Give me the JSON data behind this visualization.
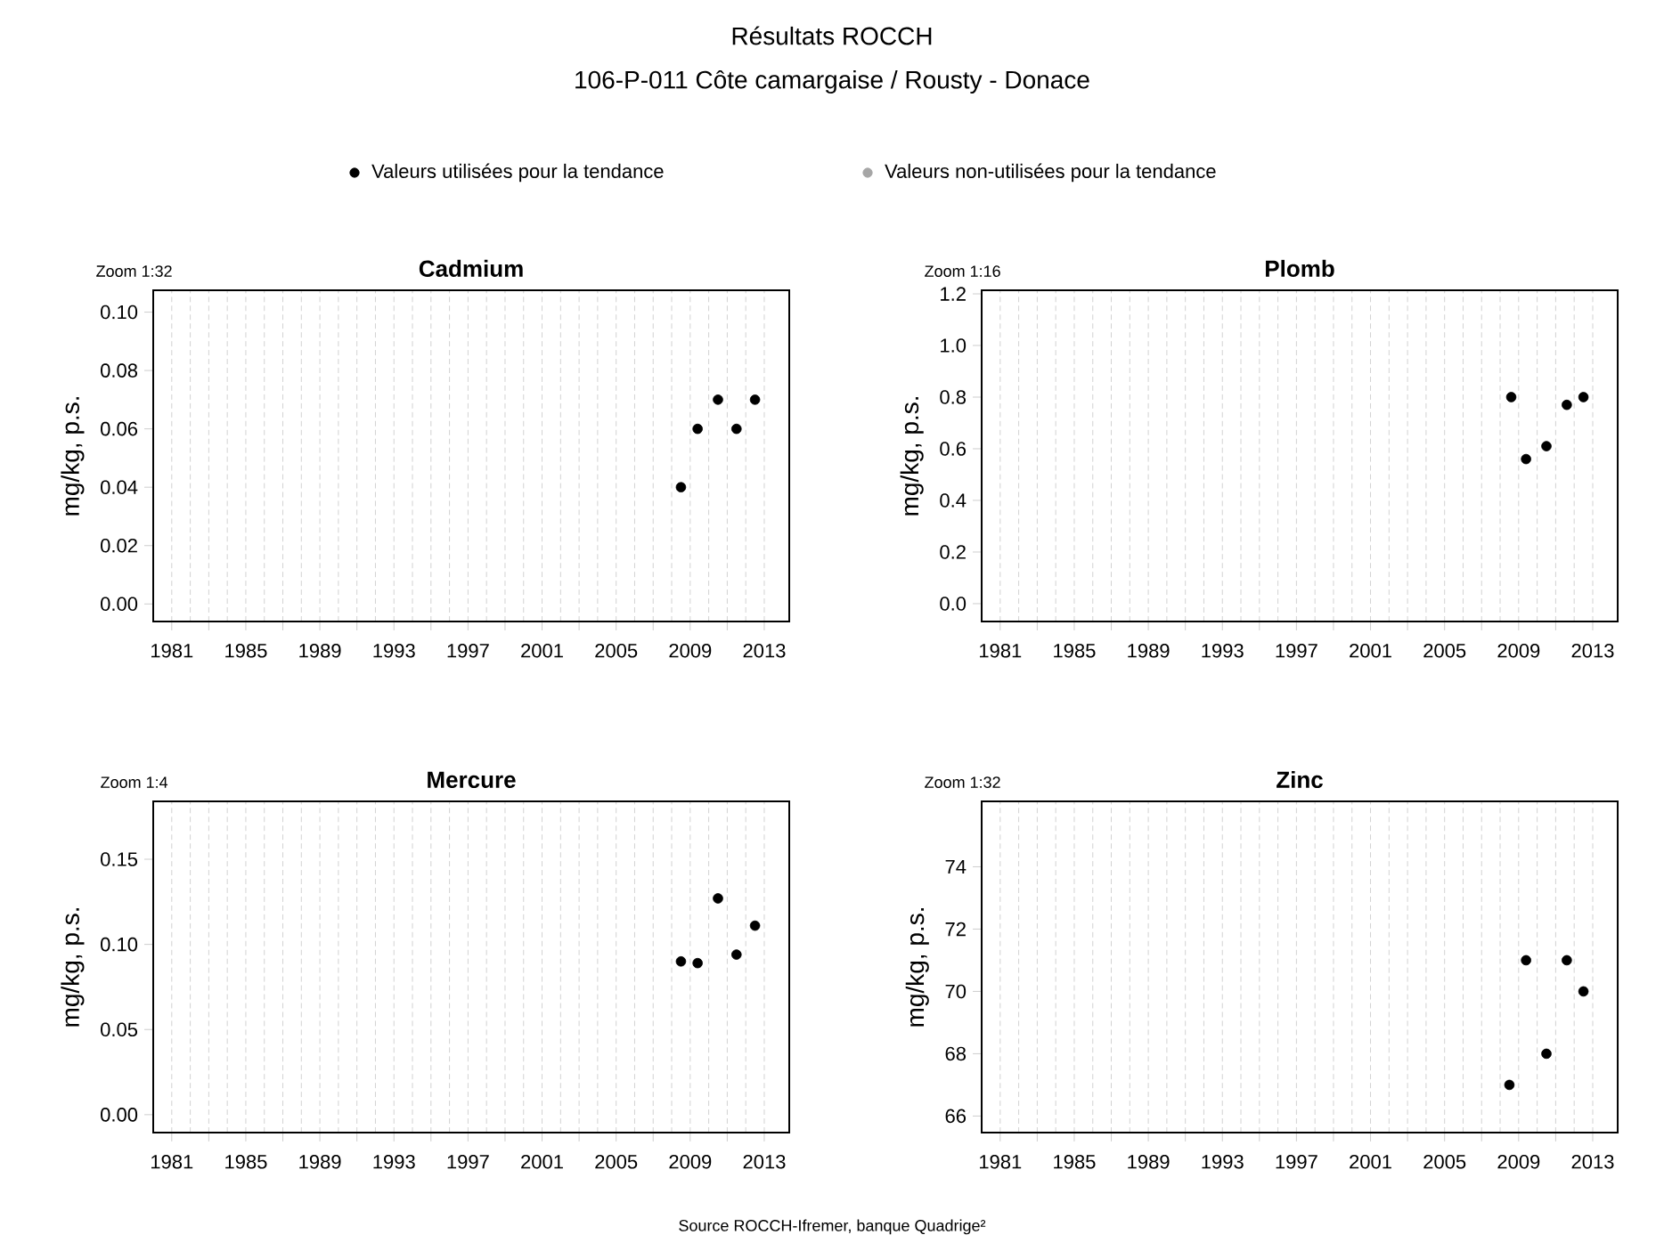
{
  "chart_data": [
    {
      "type": "scatter",
      "title": "Cadmium",
      "subtitle": "Zoom 1:32",
      "ylabel": "mg/kg, p.s.",
      "annotations": [
        "Résultats ROCCH",
        "106-P-011 Côte camargaise / Rousty - Donace"
      ],
      "legend": "top",
      "marker": "circle",
      "grid": "x",
      "xlim": [
        1980,
        2014.35
      ],
      "xticks": [
        1981,
        {
          "value": 1983,
          "label": null
        },
        1985,
        {
          "value": 1987,
          "label": null
        },
        1989,
        {
          "value": 1991,
          "label": null
        },
        1993,
        {
          "value": 1995,
          "label": null
        },
        1997,
        {
          "value": 1999,
          "label": null
        },
        2001,
        {
          "value": 2003,
          "label": null
        },
        2005,
        {
          "value": 2007,
          "label": null
        },
        2009,
        {
          "value": 2011,
          "label": null
        },
        2013
      ],
      "ylim": [
        -0.006,
        0.1075
      ],
      "yticks": [
        {
          "value": 0,
          "label": "0.00"
        },
        {
          "value": 0.02,
          "label": "0.02"
        },
        {
          "value": 0.04,
          "label": "0.04"
        },
        {
          "value": 0.06,
          "label": "0.06"
        },
        {
          "value": 0.08,
          "label": "0.08"
        },
        {
          "value": 0.1,
          "label": "0.10"
        }
      ],
      "x": [
        2008.5,
        2009.4,
        2010.5,
        2011.5,
        2012.5
      ],
      "series": [
        {
          "name": "Valeurs utilisées pour la tendance",
          "color": "#000000",
          "values": [
            0.04,
            0.06,
            0.07,
            0.06,
            0.07
          ]
        },
        {
          "name": "Valeurs non-utilisées pour la tendance",
          "color": "#a6a6a6",
          "values": [
            null,
            null,
            null,
            null,
            null
          ]
        }
      ]
    },
    {
      "type": "scatter",
      "title": "Plomb",
      "subtitle": "Zoom 1:16",
      "ylabel": "mg/kg, p.s.",
      "marker": "circle",
      "grid": "x",
      "xlim": [
        1980,
        2014.35
      ],
      "xticks": [
        1981,
        {
          "value": 1983,
          "label": null
        },
        1985,
        {
          "value": 1987,
          "label": null
        },
        1989,
        {
          "value": 1991,
          "label": null
        },
        1993,
        {
          "value": 1995,
          "label": null
        },
        1997,
        {
          "value": 1999,
          "label": null
        },
        2001,
        {
          "value": 2003,
          "label": null
        },
        2005,
        {
          "value": 2007,
          "label": null
        },
        2009,
        {
          "value": 2011,
          "label": null
        },
        2013
      ],
      "ylim": [
        -0.069,
        1.214
      ],
      "yticks": [
        {
          "value": 0,
          "label": "0.0"
        },
        0.2,
        0.4,
        0.6,
        0.8,
        {
          "value": 1,
          "label": "1.0"
        },
        1.2
      ],
      "x": [
        2008.6,
        2009.4,
        2010.5,
        2011.6,
        2012.5
      ],
      "series": [
        {
          "color": "#000000",
          "values": [
            0.8,
            0.56,
            0.61,
            0.77,
            0.8
          ]
        }
      ]
    },
    {
      "type": "scatter",
      "title": "Mercure",
      "subtitle": "Zoom 1:4",
      "ylabel": "mg/kg, p.s.",
      "marker": "circle",
      "grid": "x",
      "xlim": [
        1980,
        2014.35
      ],
      "xticks": [
        1981,
        {
          "value": 1983,
          "label": null
        },
        1985,
        {
          "value": 1987,
          "label": null
        },
        1989,
        {
          "value": 1991,
          "label": null
        },
        1993,
        {
          "value": 1995,
          "label": null
        },
        1997,
        {
          "value": 1999,
          "label": null
        },
        2001,
        {
          "value": 2003,
          "label": null
        },
        2005,
        {
          "value": 2007,
          "label": null
        },
        2009,
        {
          "value": 2011,
          "label": null
        },
        2013
      ],
      "ylim": [
        -0.0105,
        0.184
      ],
      "yticks": [
        {
          "value": 0,
          "label": "0.00"
        },
        {
          "value": 0.05,
          "label": "0.05"
        },
        {
          "value": 0.1,
          "label": "0.10"
        },
        0.15
      ],
      "x": [
        2008.5,
        2009.4,
        2010.5,
        2011.5,
        2012.5
      ],
      "series": [
        {
          "color": "#000000",
          "values": [
            0.09,
            0.089,
            0.127,
            0.094,
            0.111
          ]
        }
      ]
    },
    {
      "type": "scatter",
      "title": "Zinc",
      "subtitle": "Zoom 1:32",
      "ylabel": "mg/kg, p.s.",
      "annotations": [
        "Source ROCCH-Ifremer, banque Quadrige²"
      ],
      "marker": "circle",
      "grid": "x",
      "xlim": [
        1980,
        2014.35
      ],
      "xticks": [
        1981,
        {
          "value": 1983,
          "label": null
        },
        1985,
        {
          "value": 1987,
          "label": null
        },
        1989,
        {
          "value": 1991,
          "label": null
        },
        1993,
        {
          "value": 1995,
          "label": null
        },
        1997,
        {
          "value": 1999,
          "label": null
        },
        2001,
        {
          "value": 2003,
          "label": null
        },
        2005,
        {
          "value": 2007,
          "label": null
        },
        2009,
        {
          "value": 2011,
          "label": null
        },
        2013
      ],
      "ylim": [
        65.47,
        76.1
      ],
      "yticks": [
        66,
        68,
        70,
        72,
        74
      ],
      "x": [
        2008.5,
        2009.4,
        2010.5,
        2011.6,
        2012.5
      ],
      "series": [
        {
          "color": "#000000",
          "values": [
            67,
            71,
            68,
            71,
            70
          ]
        }
      ]
    }
  ]
}
